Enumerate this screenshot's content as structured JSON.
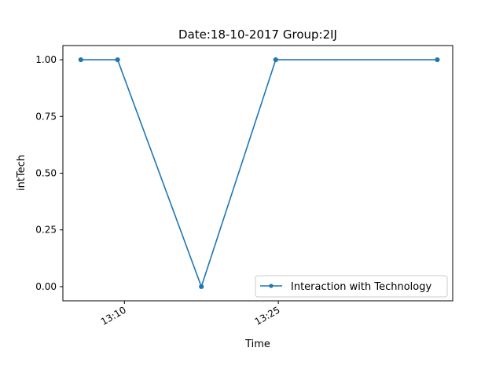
{
  "chart_data": {
    "type": "line",
    "title": "Date:18-10-2017  Group:2IJ",
    "xlabel": "Time",
    "ylabel": "intTech",
    "x_axis_kind": "time",
    "xlim": [
      "13:04",
      "13:42"
    ],
    "ylim": [
      -0.0625,
      1.0625
    ],
    "y_ticks": [
      0.0,
      0.25,
      0.5,
      0.75,
      1.0
    ],
    "y_tick_labels": [
      "0.00",
      "0.25",
      "0.50",
      "0.75",
      "1.00"
    ],
    "x_ticks": [
      "13:10",
      "13:25"
    ],
    "x_tick_labels": [
      "13:10",
      "13:25"
    ],
    "grid": false,
    "legend": {
      "position": "lower-right"
    },
    "series": [
      {
        "name": "Interaction with Technology",
        "color": "#1f77b4",
        "marker": "circle",
        "x": [
          "13:05:45",
          "13:09:20",
          "13:17:30",
          "13:24:45",
          "13:40:30"
        ],
        "y": [
          1.0,
          1.0,
          0.0,
          1.0,
          1.0
        ]
      }
    ]
  }
}
